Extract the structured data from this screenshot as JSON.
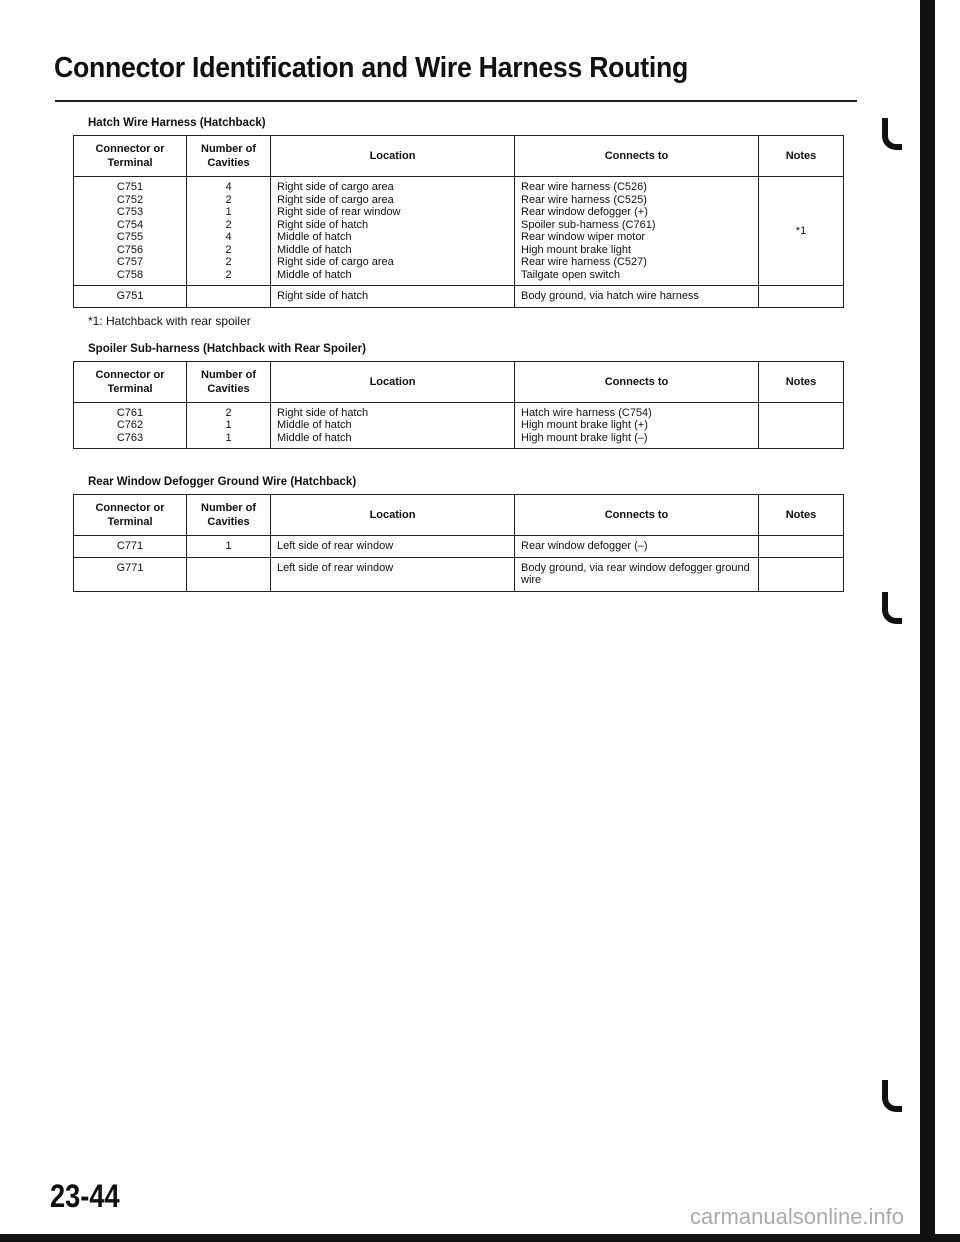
{
  "page_title": "Connector Identification and Wire Harness Routing",
  "headers": {
    "connector": "Connector or Terminal",
    "cavities": "Number of Cavities",
    "location": "Location",
    "connects": "Connects to",
    "notes": "Notes"
  },
  "tables": [
    {
      "title": "Hatch Wire Harness (Hatchback)",
      "group": {
        "connectors": [
          "C751",
          "C752",
          "C753",
          "C754",
          "C755",
          "C756",
          "C757",
          "C758"
        ],
        "cavities": [
          "4",
          "2",
          "1",
          "2",
          "4",
          "2",
          "2",
          "2"
        ],
        "locations": [
          "Right side of cargo area",
          "Right side of cargo area",
          "Right side of rear window",
          "Right side of hatch",
          "Middle of hatch",
          "Middle of hatch",
          "Right side of cargo area",
          "Middle of hatch"
        ],
        "connects": [
          "Rear wire harness (C526)",
          "Rear wire harness (C525)",
          "Rear window defogger (+)",
          "Spoiler sub-harness (C761)",
          "Rear window wiper motor",
          "High mount brake light",
          "Rear wire harness (C527)",
          "Tailgate open switch"
        ],
        "notes": "*1"
      },
      "rows": [
        {
          "connector": "G751",
          "cavities": "",
          "location": "Right side of hatch",
          "connects": "Body ground, via hatch wire harness",
          "notes": ""
        }
      ],
      "footnote": "*1: Hatchback with rear spoiler"
    },
    {
      "title": "Spoiler Sub-harness (Hatchback with Rear Spoiler)",
      "group": {
        "connectors": [
          "C761",
          "C762",
          "C763"
        ],
        "cavities": [
          "2",
          "1",
          "1"
        ],
        "locations": [
          "Right side of hatch",
          "Middle of hatch",
          "Middle of hatch"
        ],
        "connects": [
          "Hatch wire harness (C754)",
          "High mount brake light (+)",
          "High mount brake light (–)"
        ],
        "notes": ""
      }
    },
    {
      "title": "Rear Window Defogger Ground Wire (Hatchback)",
      "rows": [
        {
          "connector": "C771",
          "cavities": "1",
          "location": "Left side of rear window",
          "connects": "Rear window defogger (–)",
          "notes": ""
        },
        {
          "connector": "G771",
          "cavities": "",
          "location": "Left side of rear window",
          "connects": "Body ground, via rear window defogger ground wire",
          "notes": ""
        }
      ]
    }
  ],
  "page_number": "23-44",
  "watermark": "carmanualsonline.info"
}
